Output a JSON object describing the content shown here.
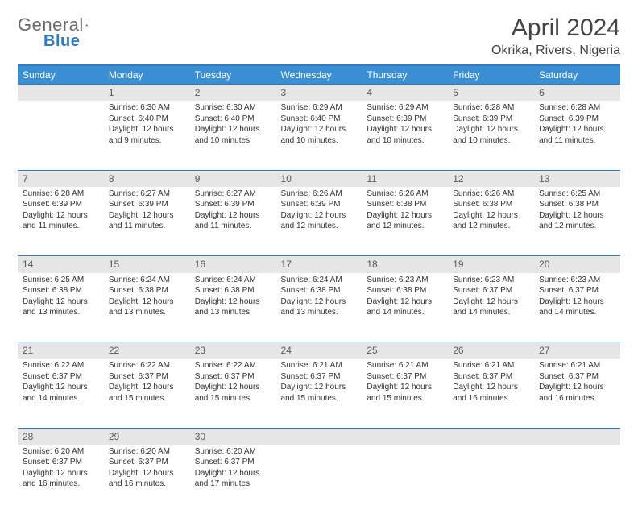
{
  "logo": {
    "text1": "General",
    "text2": "Blue"
  },
  "header": {
    "month": "April 2024",
    "location": "Okrika, Rivers, Nigeria"
  },
  "styling": {
    "header_bg": "#3a8fd4",
    "header_border": "#2f7ac0",
    "daynum_bg": "#e6e6e6",
    "text_color": "#333333",
    "logo_gray": "#6a6a6a",
    "logo_blue": "#2f7ac0",
    "month_fontsize": 30,
    "location_fontsize": 16,
    "th_fontsize": 12,
    "cell_fontsize": 10
  },
  "weekdays": [
    "Sunday",
    "Monday",
    "Tuesday",
    "Wednesday",
    "Thursday",
    "Friday",
    "Saturday"
  ],
  "weeks": [
    {
      "nums": [
        "",
        "1",
        "2",
        "3",
        "4",
        "5",
        "6"
      ],
      "cells": [
        null,
        {
          "sunrise": "Sunrise: 6:30 AM",
          "sunset": "Sunset: 6:40 PM",
          "day1": "Daylight: 12 hours",
          "day2": "and 9 minutes."
        },
        {
          "sunrise": "Sunrise: 6:30 AM",
          "sunset": "Sunset: 6:40 PM",
          "day1": "Daylight: 12 hours",
          "day2": "and 10 minutes."
        },
        {
          "sunrise": "Sunrise: 6:29 AM",
          "sunset": "Sunset: 6:40 PM",
          "day1": "Daylight: 12 hours",
          "day2": "and 10 minutes."
        },
        {
          "sunrise": "Sunrise: 6:29 AM",
          "sunset": "Sunset: 6:39 PM",
          "day1": "Daylight: 12 hours",
          "day2": "and 10 minutes."
        },
        {
          "sunrise": "Sunrise: 6:28 AM",
          "sunset": "Sunset: 6:39 PM",
          "day1": "Daylight: 12 hours",
          "day2": "and 10 minutes."
        },
        {
          "sunrise": "Sunrise: 6:28 AM",
          "sunset": "Sunset: 6:39 PM",
          "day1": "Daylight: 12 hours",
          "day2": "and 11 minutes."
        }
      ]
    },
    {
      "nums": [
        "7",
        "8",
        "9",
        "10",
        "11",
        "12",
        "13"
      ],
      "cells": [
        {
          "sunrise": "Sunrise: 6:28 AM",
          "sunset": "Sunset: 6:39 PM",
          "day1": "Daylight: 12 hours",
          "day2": "and 11 minutes."
        },
        {
          "sunrise": "Sunrise: 6:27 AM",
          "sunset": "Sunset: 6:39 PM",
          "day1": "Daylight: 12 hours",
          "day2": "and 11 minutes."
        },
        {
          "sunrise": "Sunrise: 6:27 AM",
          "sunset": "Sunset: 6:39 PM",
          "day1": "Daylight: 12 hours",
          "day2": "and 11 minutes."
        },
        {
          "sunrise": "Sunrise: 6:26 AM",
          "sunset": "Sunset: 6:39 PM",
          "day1": "Daylight: 12 hours",
          "day2": "and 12 minutes."
        },
        {
          "sunrise": "Sunrise: 6:26 AM",
          "sunset": "Sunset: 6:38 PM",
          "day1": "Daylight: 12 hours",
          "day2": "and 12 minutes."
        },
        {
          "sunrise": "Sunrise: 6:26 AM",
          "sunset": "Sunset: 6:38 PM",
          "day1": "Daylight: 12 hours",
          "day2": "and 12 minutes."
        },
        {
          "sunrise": "Sunrise: 6:25 AM",
          "sunset": "Sunset: 6:38 PM",
          "day1": "Daylight: 12 hours",
          "day2": "and 12 minutes."
        }
      ]
    },
    {
      "nums": [
        "14",
        "15",
        "16",
        "17",
        "18",
        "19",
        "20"
      ],
      "cells": [
        {
          "sunrise": "Sunrise: 6:25 AM",
          "sunset": "Sunset: 6:38 PM",
          "day1": "Daylight: 12 hours",
          "day2": "and 13 minutes."
        },
        {
          "sunrise": "Sunrise: 6:24 AM",
          "sunset": "Sunset: 6:38 PM",
          "day1": "Daylight: 12 hours",
          "day2": "and 13 minutes."
        },
        {
          "sunrise": "Sunrise: 6:24 AM",
          "sunset": "Sunset: 6:38 PM",
          "day1": "Daylight: 12 hours",
          "day2": "and 13 minutes."
        },
        {
          "sunrise": "Sunrise: 6:24 AM",
          "sunset": "Sunset: 6:38 PM",
          "day1": "Daylight: 12 hours",
          "day2": "and 13 minutes."
        },
        {
          "sunrise": "Sunrise: 6:23 AM",
          "sunset": "Sunset: 6:38 PM",
          "day1": "Daylight: 12 hours",
          "day2": "and 14 minutes."
        },
        {
          "sunrise": "Sunrise: 6:23 AM",
          "sunset": "Sunset: 6:37 PM",
          "day1": "Daylight: 12 hours",
          "day2": "and 14 minutes."
        },
        {
          "sunrise": "Sunrise: 6:23 AM",
          "sunset": "Sunset: 6:37 PM",
          "day1": "Daylight: 12 hours",
          "day2": "and 14 minutes."
        }
      ]
    },
    {
      "nums": [
        "21",
        "22",
        "23",
        "24",
        "25",
        "26",
        "27"
      ],
      "cells": [
        {
          "sunrise": "Sunrise: 6:22 AM",
          "sunset": "Sunset: 6:37 PM",
          "day1": "Daylight: 12 hours",
          "day2": "and 14 minutes."
        },
        {
          "sunrise": "Sunrise: 6:22 AM",
          "sunset": "Sunset: 6:37 PM",
          "day1": "Daylight: 12 hours",
          "day2": "and 15 minutes."
        },
        {
          "sunrise": "Sunrise: 6:22 AM",
          "sunset": "Sunset: 6:37 PM",
          "day1": "Daylight: 12 hours",
          "day2": "and 15 minutes."
        },
        {
          "sunrise": "Sunrise: 6:21 AM",
          "sunset": "Sunset: 6:37 PM",
          "day1": "Daylight: 12 hours",
          "day2": "and 15 minutes."
        },
        {
          "sunrise": "Sunrise: 6:21 AM",
          "sunset": "Sunset: 6:37 PM",
          "day1": "Daylight: 12 hours",
          "day2": "and 15 minutes."
        },
        {
          "sunrise": "Sunrise: 6:21 AM",
          "sunset": "Sunset: 6:37 PM",
          "day1": "Daylight: 12 hours",
          "day2": "and 16 minutes."
        },
        {
          "sunrise": "Sunrise: 6:21 AM",
          "sunset": "Sunset: 6:37 PM",
          "day1": "Daylight: 12 hours",
          "day2": "and 16 minutes."
        }
      ]
    },
    {
      "nums": [
        "28",
        "29",
        "30",
        "",
        "",
        "",
        ""
      ],
      "cells": [
        {
          "sunrise": "Sunrise: 6:20 AM",
          "sunset": "Sunset: 6:37 PM",
          "day1": "Daylight: 12 hours",
          "day2": "and 16 minutes."
        },
        {
          "sunrise": "Sunrise: 6:20 AM",
          "sunset": "Sunset: 6:37 PM",
          "day1": "Daylight: 12 hours",
          "day2": "and 16 minutes."
        },
        {
          "sunrise": "Sunrise: 6:20 AM",
          "sunset": "Sunset: 6:37 PM",
          "day1": "Daylight: 12 hours",
          "day2": "and 17 minutes."
        },
        null,
        null,
        null,
        null
      ]
    }
  ]
}
